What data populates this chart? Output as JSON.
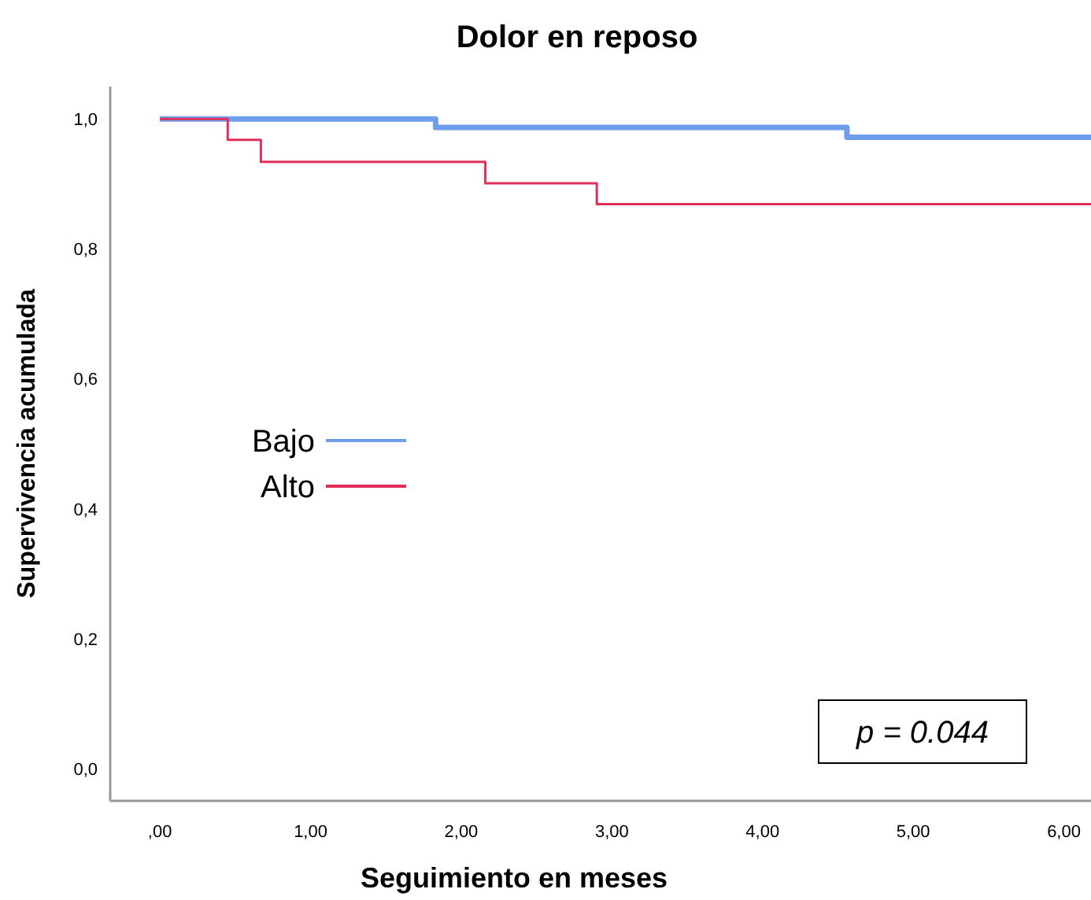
{
  "chart_data": {
    "type": "step",
    "title": "Dolor en reposo",
    "xlabel": "Seguimiento en meses",
    "ylabel": "Supervivencia acumulada",
    "xlim": [
      -0.33,
      6.18
    ],
    "ylim": [
      -0.05,
      1.05
    ],
    "xticks": [
      {
        "value": 0,
        "label": ",00"
      },
      {
        "value": 1,
        "label": "1,00"
      },
      {
        "value": 2,
        "label": "2,00"
      },
      {
        "value": 3,
        "label": "3,00"
      },
      {
        "value": 4,
        "label": "4,00"
      },
      {
        "value": 5,
        "label": "5,00"
      },
      {
        "value": 6,
        "label": "6,00"
      }
    ],
    "yticks": [
      {
        "value": 0,
        "label": "0,0"
      },
      {
        "value": 0.2,
        "label": "0,2"
      },
      {
        "value": 0.4,
        "label": "0,4"
      },
      {
        "value": 0.6,
        "label": "0,6"
      },
      {
        "value": 0.8,
        "label": "0,8"
      },
      {
        "value": 1,
        "label": "1,0"
      }
    ],
    "series": [
      {
        "name": "Bajo",
        "color": "#6d9eeb",
        "x": [
          0,
          1.83,
          4.56,
          6.18
        ],
        "values": [
          1,
          0.987,
          0.972,
          0.972
        ]
      },
      {
        "name": "Alto",
        "color": "#e0305a",
        "x": [
          0,
          0.45,
          0.67,
          2.16,
          2.9,
          6.18
        ],
        "values": [
          1,
          0.968,
          0.934,
          0.901,
          0.869,
          0.869
        ]
      }
    ],
    "legend": "left",
    "grid": false,
    "annotations": [
      "p = 0.044"
    ]
  }
}
